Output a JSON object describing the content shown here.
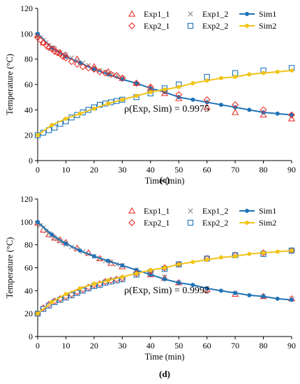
{
  "chart_data": [
    {
      "type": "scatter",
      "panel_label": "(c)",
      "xlabel": "Time (min)",
      "ylabel": "Temperature (°C)",
      "xlim": [
        0,
        90
      ],
      "ylim": [
        0,
        120
      ],
      "x_ticks": [
        0,
        10,
        20,
        30,
        40,
        50,
        60,
        70,
        80,
        90
      ],
      "y_ticks": [
        0,
        20,
        40,
        60,
        80,
        100,
        120
      ],
      "grid": false,
      "legend_position": "top-right",
      "annotation": "ρ(Exp, Sim) = 0.9975",
      "legend_order": [
        "Exp1_1",
        "Exp1_2",
        "Sim1",
        "Exp2_1",
        "Exp2_2",
        "Sim2"
      ],
      "series": [
        {
          "name": "Exp1_1",
          "marker": "triangle",
          "color": "#e8312a",
          "x": [
            0,
            2,
            4,
            6,
            8,
            10,
            14,
            20,
            25,
            30,
            35,
            40,
            45,
            50,
            60,
            70,
            80,
            90
          ],
          "y": [
            99,
            93,
            90,
            88,
            85,
            83,
            80,
            74,
            70,
            65,
            61,
            57,
            53,
            49,
            42,
            38,
            36,
            33
          ]
        },
        {
          "name": "Exp1_2",
          "marker": "x",
          "color": "#8c8c8c",
          "x": [
            0,
            1,
            2,
            3,
            4,
            5,
            6,
            7,
            8,
            9,
            10,
            12,
            14,
            16,
            18,
            20,
            22,
            24,
            26,
            28,
            30
          ],
          "y": [
            99,
            97,
            95,
            93,
            91,
            89,
            88,
            86,
            85,
            84,
            83,
            81,
            79,
            77,
            75,
            73,
            71,
            70,
            68,
            67,
            65
          ]
        },
        {
          "name": "Sim1",
          "marker": "circle-line",
          "color": "#1f73b7",
          "x": [
            0,
            5,
            10,
            15,
            20,
            25,
            30,
            35,
            40,
            45,
            50,
            55,
            60,
            65,
            70,
            75,
            80,
            85,
            90
          ],
          "y": [
            100,
            89,
            82,
            77,
            72,
            68,
            64,
            61,
            57,
            54,
            50,
            48,
            46,
            44,
            42,
            40,
            38,
            37,
            36
          ]
        },
        {
          "name": "Exp2_1",
          "marker": "diamond",
          "color": "#e8312a",
          "x": [
            0,
            1,
            2,
            3,
            4,
            5,
            6,
            7,
            8,
            9,
            10,
            12,
            14,
            16,
            18,
            20,
            22,
            24,
            26,
            28,
            30,
            35,
            40,
            45,
            50,
            60,
            70,
            80,
            90
          ],
          "y": [
            97,
            95,
            93,
            91,
            89,
            88,
            86,
            85,
            84,
            82,
            81,
            78,
            76,
            74,
            73,
            72,
            70,
            69,
            68,
            67,
            65,
            61,
            58,
            55,
            52,
            48,
            44,
            40,
            36
          ]
        },
        {
          "name": "Exp2_2",
          "marker": "square",
          "color": "#1f73b7",
          "x": [
            0,
            2,
            4,
            6,
            8,
            10,
            12,
            14,
            16,
            18,
            20,
            22,
            24,
            26,
            28,
            30,
            35,
            40,
            45,
            50,
            60,
            70,
            80,
            90
          ],
          "y": [
            20,
            22,
            24,
            26,
            29,
            31,
            34,
            36,
            38,
            40,
            42,
            44,
            45,
            46,
            47,
            48,
            50,
            53,
            57,
            60,
            66,
            69,
            71,
            73
          ]
        },
        {
          "name": "Sim2",
          "marker": "circle-line",
          "color": "#f2c418",
          "x": [
            0,
            5,
            10,
            15,
            20,
            25,
            30,
            35,
            40,
            45,
            50,
            55,
            60,
            65,
            70,
            75,
            80,
            85,
            90
          ],
          "y": [
            20,
            28,
            33,
            37,
            41,
            45,
            48,
            51,
            54,
            56,
            58,
            61,
            63,
            65,
            66,
            68,
            69,
            70,
            71
          ]
        }
      ]
    },
    {
      "type": "scatter",
      "panel_label": "(d)",
      "xlabel": "Time (min)",
      "ylabel": "Temperature (°C)",
      "xlim": [
        0,
        90
      ],
      "ylim": [
        0,
        120
      ],
      "x_ticks": [
        0,
        10,
        20,
        30,
        40,
        50,
        60,
        70,
        80,
        90
      ],
      "y_ticks": [
        0,
        20,
        40,
        60,
        80,
        100,
        120
      ],
      "grid": false,
      "legend_position": "top-right",
      "annotation": "ρ(Exp, Sim) = 0.9992",
      "legend_order": [
        "Exp1_1",
        "Exp1_2",
        "Sim1",
        "Exp2_1",
        "Exp2_2",
        "Sim2"
      ],
      "series": [
        {
          "name": "Exp1_1",
          "marker": "triangle",
          "color": "#e8312a",
          "x": [
            0,
            2,
            4,
            6,
            8,
            10,
            14,
            18,
            22,
            26,
            30,
            35,
            40,
            45,
            50,
            60,
            70,
            80,
            90
          ],
          "y": [
            99,
            93,
            89,
            86,
            84,
            82,
            77,
            73,
            68,
            64,
            61,
            57,
            54,
            51,
            47,
            41,
            37,
            35,
            33
          ]
        },
        {
          "name": "Exp1_2",
          "marker": "x",
          "color": "#8c8c8c",
          "x": [
            0,
            1,
            2,
            3,
            4,
            5,
            6,
            7,
            8,
            9,
            10,
            12,
            14,
            16,
            18,
            20,
            22,
            24,
            26,
            28,
            30,
            35,
            40,
            45,
            50,
            60,
            70,
            80,
            90
          ],
          "y": [
            99,
            97,
            95,
            92,
            90,
            88,
            86,
            85,
            83,
            82,
            80,
            78,
            76,
            74,
            72,
            70,
            68,
            66,
            65,
            63,
            62,
            58,
            55,
            52,
            47,
            42,
            38,
            35,
            33
          ]
        },
        {
          "name": "Sim1",
          "marker": "circle-line",
          "color": "#1f73b7",
          "x": [
            0,
            5,
            10,
            15,
            20,
            25,
            30,
            35,
            40,
            45,
            50,
            55,
            60,
            65,
            70,
            75,
            80,
            85,
            90
          ],
          "y": [
            100,
            89,
            81,
            75,
            70,
            66,
            62,
            58,
            54,
            50,
            47,
            45,
            42,
            40,
            38,
            36,
            35,
            33,
            32
          ]
        },
        {
          "name": "Exp2_1",
          "marker": "diamond",
          "color": "#e8312a",
          "x": [
            0,
            2,
            4,
            6,
            8,
            10,
            12,
            14,
            16,
            18,
            20,
            22,
            24,
            26,
            28,
            30,
            35,
            40,
            45,
            50,
            60,
            70,
            80,
            90
          ],
          "y": [
            20,
            25,
            28,
            31,
            33,
            35,
            37,
            39,
            41,
            43,
            45,
            46,
            48,
            49,
            50,
            51,
            55,
            57,
            60,
            63,
            68,
            71,
            73,
            75
          ]
        },
        {
          "name": "Exp2_2",
          "marker": "square",
          "color": "#1f73b7",
          "x": [
            0,
            2,
            4,
            6,
            8,
            10,
            12,
            14,
            16,
            18,
            20,
            22,
            24,
            26,
            28,
            30,
            35,
            40,
            45,
            50,
            60,
            70,
            80,
            90
          ],
          "y": [
            20,
            24,
            27,
            30,
            32,
            34,
            36,
            38,
            40,
            42,
            44,
            45,
            47,
            48,
            49,
            50,
            54,
            56,
            59,
            63,
            68,
            71,
            72,
            75
          ]
        },
        {
          "name": "Sim2",
          "marker": "circle-line",
          "color": "#f2c418",
          "x": [
            0,
            5,
            10,
            15,
            20,
            25,
            30,
            35,
            40,
            45,
            50,
            55,
            60,
            65,
            70,
            75,
            80,
            85,
            90
          ],
          "y": [
            20,
            30,
            37,
            42,
            46,
            49,
            52,
            55,
            58,
            60,
            63,
            65,
            67,
            69,
            70,
            72,
            73,
            74,
            75
          ]
        }
      ]
    }
  ]
}
